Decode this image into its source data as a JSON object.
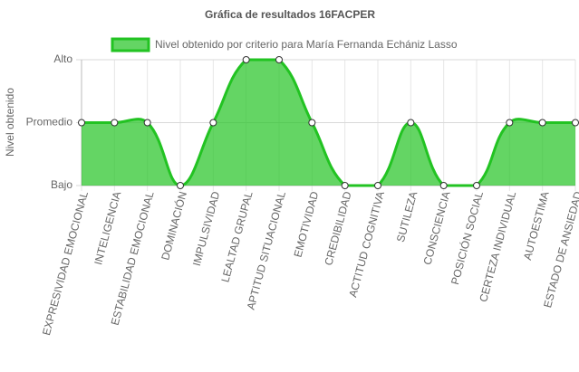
{
  "chart_data": {
    "type": "area",
    "title": "Gráfica de resultados 16FACPER",
    "y_label": "Nivel obtenido",
    "categories": [
      "EXPRESIVIDAD EMOCIONAL",
      "INTELIGENCIA",
      "ESTABILIDAD EMOCIONAL",
      "DOMINACIÓN",
      "IMPULSIVIDAD",
      "LEALTAD GRUPAL",
      "APTITUD SITUACIONAL",
      "EMOTIVIDAD",
      "CREDIBILIDAD",
      "ACTITUD COGNITIVA",
      "SUTILEZA",
      "CONSCIENCIA",
      "POSICIÓN SOCIAL",
      "CERTEZA INDIVIDUAL",
      "AUTOESTIMA",
      "ESTADO DE ANSIEDAD"
    ],
    "series": [
      {
        "name": "Nivel obtenido por criterio para María Fernanda Echániz Lasso",
        "color": "#22c322",
        "values": [
          2,
          2,
          2,
          1,
          2,
          3,
          3,
          2,
          1,
          1,
          2,
          1,
          1,
          2,
          2,
          2
        ]
      }
    ],
    "ylim": [
      1,
      3
    ],
    "yticks": [
      {
        "value": 1,
        "label": "Bajo"
      },
      {
        "value": 2,
        "label": "Promedio"
      },
      {
        "value": 3,
        "label": "Alto"
      }
    ],
    "grid": true
  }
}
